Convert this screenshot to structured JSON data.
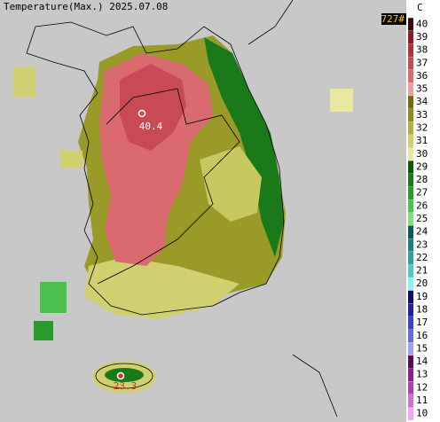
{
  "header": {
    "title": "Temperature(Max.) 2025.07.08",
    "station_count": "727#"
  },
  "colorbar": {
    "unit": "C",
    "ticks": [
      10,
      11,
      12,
      13,
      14,
      15,
      16,
      17,
      18,
      19,
      20,
      21,
      22,
      23,
      24,
      25,
      26,
      27,
      28,
      29,
      30,
      31,
      32,
      33,
      34,
      35,
      36,
      37,
      38,
      39,
      40
    ],
    "colors": [
      "#f0a8f0",
      "#d070d0",
      "#b040b0",
      "#8a208a",
      "#5a0a5a",
      "#a0a0f0",
      "#6a6ae0",
      "#4040c8",
      "#2020a0",
      "#10106a",
      "#90f0f0",
      "#50c8c8",
      "#30a0a0",
      "#1a8080",
      "#0a5a5a",
      "#80e080",
      "#4cc04c",
      "#2a9a2a",
      "#1a7a1a",
      "#0a5a0a",
      "#e8e8a0",
      "#d0d070",
      "#b0b040",
      "#8c8c20",
      "#6e6e10",
      "#e8a0a0",
      "#d86a70",
      "#c84a55",
      "#b0303c",
      "#8b1a2a",
      "#3a0a10"
    ]
  },
  "markers": [
    {
      "label": "40.4"
    },
    {
      "label": "23.3"
    }
  ]
}
